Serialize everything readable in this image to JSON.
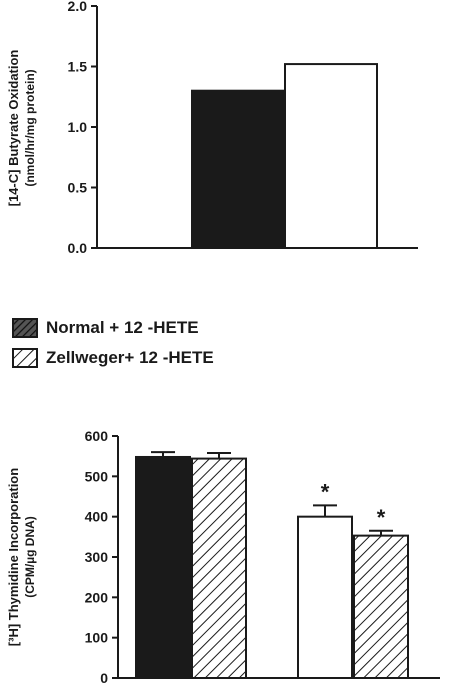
{
  "chart_data": [
    {
      "type": "bar",
      "title": "",
      "ylabel": "[14-C] Butyrate Oxidation",
      "ylabel_units": "(nmol/hr/mg protein)",
      "ylim": [
        0,
        2.0
      ],
      "yticks": [
        "0.0",
        "0.5",
        "1.0",
        "1.5",
        "2.0"
      ],
      "grid": false,
      "series": [
        {
          "name": "",
          "values": [
            1.3
          ],
          "fill": "solid",
          "color": "#1a1a1a"
        },
        {
          "name": "",
          "values": [
            1.52
          ],
          "fill": "open",
          "color": "#ffffff"
        }
      ]
    },
    {
      "type": "bar",
      "title": "",
      "ylabel": "[³H] Thymidine Incorporation",
      "ylabel_units": "(CPM/µg DNA)",
      "ylim": [
        0,
        600
      ],
      "yticks": [
        "0",
        "100",
        "200",
        "300",
        "400",
        "500",
        "600"
      ],
      "grid": false,
      "groups": [
        {
          "bars": [
            {
              "value": 548,
              "error": 12,
              "fill": "solid",
              "marker": ""
            },
            {
              "value": 544,
              "error": 14,
              "fill": "hatched",
              "marker": ""
            }
          ]
        },
        {
          "bars": [
            {
              "value": 400,
              "error": 28,
              "fill": "open",
              "marker": "*"
            },
            {
              "value": 353,
              "error": 12,
              "fill": "hatched",
              "marker": "*"
            }
          ]
        }
      ]
    }
  ],
  "legend": {
    "placement": "between-panels",
    "items": [
      {
        "label": "Normal + 12 -HETE",
        "swatch": "hatched-dark"
      },
      {
        "label": "Zellweger+ 12 -HETE",
        "swatch": "hatched-light"
      }
    ]
  }
}
